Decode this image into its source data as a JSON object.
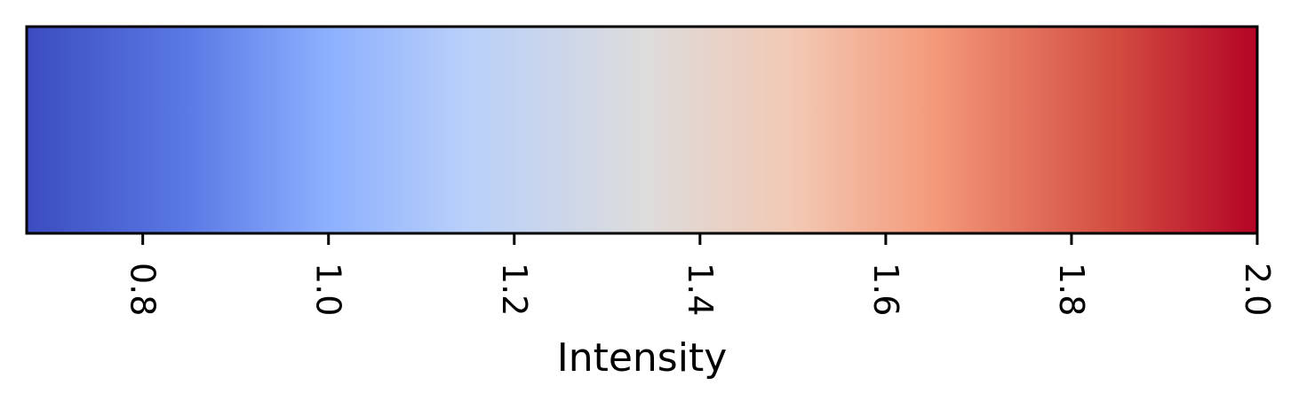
{
  "chart_data": {
    "type": "colorbar",
    "orientation": "horizontal",
    "colormap": "coolwarm",
    "xlabel": "Intensity",
    "xlim": [
      0.675,
      2.0
    ],
    "ticks": [
      0.8,
      1.0,
      1.2,
      1.4,
      1.6,
      1.8,
      2.0
    ],
    "tick_labels": [
      "0.8",
      "1.0",
      "1.2",
      "1.4",
      "1.6",
      "1.8",
      "2.0"
    ],
    "tick_label_rotation": "vertical",
    "gradient_stops": [
      {
        "value": 0.675,
        "color": "#3b4cc0"
      },
      {
        "value": 0.85,
        "color": "#5b7ae5"
      },
      {
        "value": 1.0,
        "color": "#8db0fe"
      },
      {
        "value": 1.15,
        "color": "#b9d0f9"
      },
      {
        "value": 1.34,
        "color": "#dddcdc"
      },
      {
        "value": 1.5,
        "color": "#f2c9b4"
      },
      {
        "value": 1.65,
        "color": "#f49a7b"
      },
      {
        "value": 1.85,
        "color": "#d24b40"
      },
      {
        "value": 2.0,
        "color": "#b40426"
      }
    ]
  }
}
